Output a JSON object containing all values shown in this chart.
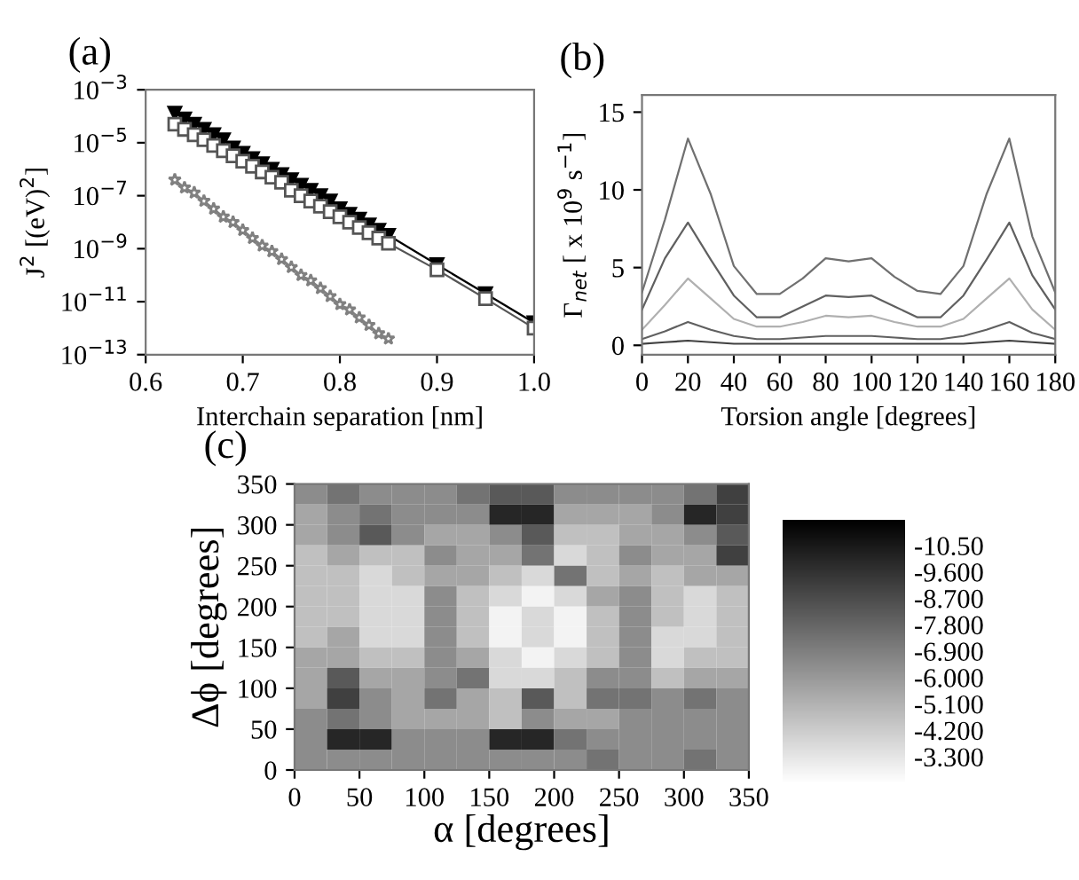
{
  "chart_data": [
    {
      "type": "line",
      "title": "(a)",
      "xlabel": "Interchain separation [nm]",
      "ylabel": "J$^{2}$ [(eV)$^{2}$]",
      "log": "y",
      "x": [
        0.63,
        0.64,
        0.65,
        0.66,
        0.67,
        0.68,
        0.69,
        0.7,
        0.71,
        0.72,
        0.73,
        0.74,
        0.75,
        0.76,
        0.77,
        0.78,
        0.79,
        0.8,
        0.81,
        0.82,
        0.83,
        0.84,
        0.85,
        0.9,
        0.95,
        1.0
      ],
      "xlim": [
        0.6,
        1.0
      ],
      "xticks": [
        0.6,
        0.7,
        0.8,
        0.9,
        {
          "value": 1.0,
          "label": "1.0"
        }
      ],
      "ylim": [
        1e-13,
        0.001
      ],
      "yticks": [
        {
          "value": 1e-13,
          "label": "10$^{−13}$"
        },
        {
          "value": 1e-11,
          "label": "10$^{−11}$"
        },
        {
          "value": 1e-09,
          "label": "10$^{−9}$"
        },
        {
          "value": 1e-07,
          "label": "10$^{−7}$"
        },
        {
          "value": 1e-05,
          "label": "10$^{−5}$"
        },
        {
          "value": 0.001,
          "label": "10$^{−3}$"
        }
      ],
      "grid": false,
      "series": [
        {
          "color": "#000000",
          "marker": "triangle",
          "values": [
            0.00013,
            7.9e-05,
            5e-05,
            3.2e-05,
            2e-05,
            1.3e-05,
            6.3e-06,
            4e-06,
            2.5e-06,
            1.6e-06,
            1e-06,
            6.3e-07,
            4e-07,
            2.5e-07,
            1.6e-07,
            1e-07,
            6.3e-08,
            3.2e-08,
            2e-08,
            1.3e-08,
            7.9e-09,
            5e-09,
            3.2e-09,
            2.5e-10,
            2e-11,
            1.6e-12
          ]
        },
        {
          "color": "#555555",
          "marker": "square",
          "values": [
            5e-05,
            3.2e-05,
            2e-05,
            1.3e-05,
            7.9e-06,
            5e-06,
            3.2e-06,
            2e-06,
            1.3e-06,
            7.9e-07,
            5e-07,
            3.2e-07,
            1.6e-07,
            1e-07,
            6.3e-08,
            4e-08,
            2.5e-08,
            1.6e-08,
            1e-08,
            6.3e-09,
            4e-09,
            2.5e-09,
            1.6e-09,
            1.6e-10,
            1.3e-11,
            1e-12
          ]
        },
        {
          "color": "#808080",
          "marker": "star",
          "values": [
            4e-07,
            2e-07,
            1.3e-07,
            6.3e-08,
            3.2e-08,
            1.6e-08,
            1e-08,
            5e-09,
            2.5e-09,
            1.3e-09,
            7.9e-10,
            4e-10,
            2e-10,
            1e-10,
            6.3e-11,
            3.2e-11,
            1.6e-11,
            7.9e-12,
            5e-12,
            2.5e-12,
            1.3e-12,
            6.3e-13,
            4e-13,
            null,
            null,
            null
          ]
        }
      ]
    },
    {
      "type": "line",
      "title": "(b)",
      "xlabel": "Torsion angle [degrees]",
      "ylabel": "Γ$_{net}$ [ x 10$^{9}$ s$^{−1}$]",
      "x": [
        0,
        10,
        20,
        30,
        40,
        50,
        60,
        70,
        80,
        90,
        100,
        110,
        120,
        130,
        140,
        150,
        160,
        170,
        180
      ],
      "xlim": [
        0,
        180
      ],
      "xticks": [
        0,
        20,
        40,
        60,
        80,
        100,
        120,
        140,
        160,
        180
      ],
      "ylim": [
        -0.6,
        16.1
      ],
      "yticks": [
        0,
        5,
        10,
        15
      ],
      "grid": false,
      "series": [
        {
          "color": "#707070",
          "values": [
            3.4,
            8.1,
            13.3,
            9.7,
            5.1,
            3.3,
            3.3,
            4.3,
            5.6,
            5.4,
            5.6,
            4.4,
            3.5,
            3.3,
            5.1,
            9.7,
            13.3,
            7.0,
            3.4
          ]
        },
        {
          "color": "#606060",
          "values": [
            2.3,
            5.6,
            7.9,
            5.5,
            3.2,
            1.8,
            1.8,
            2.5,
            3.2,
            3.1,
            3.2,
            2.5,
            1.8,
            1.8,
            3.2,
            5.5,
            7.9,
            4.5,
            2.3
          ]
        },
        {
          "color": "#b0b0b0",
          "values": [
            1.0,
            2.6,
            4.3,
            3.0,
            1.7,
            1.2,
            1.2,
            1.5,
            1.9,
            1.8,
            1.9,
            1.5,
            1.2,
            1.2,
            1.7,
            3.0,
            4.3,
            2.3,
            1.0
          ]
        },
        {
          "color": "#606060",
          "values": [
            0.4,
            0.9,
            1.5,
            1.0,
            0.6,
            0.4,
            0.4,
            0.5,
            0.6,
            0.6,
            0.6,
            0.5,
            0.4,
            0.4,
            0.6,
            1.0,
            1.5,
            0.8,
            0.4
          ]
        },
        {
          "color": "#404040",
          "values": [
            0.1,
            0.2,
            0.3,
            0.2,
            0.1,
            0.1,
            0.1,
            0.1,
            0.1,
            0.1,
            0.1,
            0.1,
            0.1,
            0.1,
            0.1,
            0.2,
            0.3,
            0.2,
            0.1
          ]
        }
      ]
    },
    {
      "type": "heatmap",
      "title": "(c)",
      "xlabel": "α [degrees]",
      "ylabel": "Δϕ [degrees]",
      "x": [
        12.5,
        37.5,
        62.5,
        87.5,
        112.5,
        137.5,
        162.5,
        187.5,
        212.5,
        237.5,
        262.5,
        287.5,
        312.5,
        337.5
      ],
      "y": [
        337.5,
        312.5,
        287.5,
        262.5,
        237.5,
        212.5,
        187.5,
        162.5,
        137.5,
        112.5,
        87.5,
        62.5,
        37.5,
        12.5
      ],
      "xlim": [
        0,
        350
      ],
      "xticks": [
        0,
        50,
        100,
        150,
        200,
        250,
        300,
        350
      ],
      "ylim": [
        0,
        350
      ],
      "yticks": [
        0,
        50,
        100,
        150,
        200,
        250,
        300,
        350
      ],
      "clim": [
        -11.4,
        -2.4
      ],
      "cticks": [
        {
          "value": -10.5,
          "label": "-10.50"
        },
        {
          "value": -9.6,
          "label": "-9.600"
        },
        {
          "value": -8.7,
          "label": "-8.700"
        },
        {
          "value": -7.8,
          "label": "-7.800"
        },
        {
          "value": -6.9,
          "label": "-6.900"
        },
        {
          "value": -6.0,
          "label": "-6.000"
        },
        {
          "value": -5.1,
          "label": "-5.100"
        },
        {
          "value": -4.2,
          "label": "-4.200"
        },
        {
          "value": -3.3,
          "label": "-3.300"
        }
      ],
      "cells": [
        [
          -6.45,
          -7.35,
          -6.45,
          -6.45,
          -6.45,
          -7.35,
          -8.25,
          -8.25,
          -6.45,
          -6.45,
          -6.45,
          -6.45,
          -7.35,
          -9.15
        ],
        [
          -5.55,
          -6.45,
          -7.35,
          -6.45,
          -6.45,
          -6.45,
          -10.05,
          -10.05,
          -5.55,
          -5.55,
          -5.55,
          -6.45,
          -10.05,
          -9.15
        ],
        [
          -5.55,
          -6.45,
          -8.25,
          -6.45,
          -5.55,
          -5.55,
          -6.45,
          -8.25,
          -4.65,
          -4.65,
          -5.55,
          -5.55,
          -6.45,
          -8.25
        ],
        [
          -4.65,
          -5.55,
          -4.65,
          -4.65,
          -6.45,
          -5.55,
          -5.55,
          -7.35,
          -3.75,
          -4.65,
          -6.45,
          -5.55,
          -5.55,
          -9.15
        ],
        [
          -4.65,
          -4.65,
          -3.75,
          -4.65,
          -5.55,
          -5.55,
          -4.65,
          -3.75,
          -7.35,
          -4.65,
          -5.55,
          -4.65,
          -5.55,
          -5.55
        ],
        [
          -4.65,
          -4.65,
          -3.75,
          -3.75,
          -6.45,
          -4.65,
          -3.75,
          -2.85,
          -3.75,
          -5.55,
          -6.45,
          -4.65,
          -3.75,
          -4.65
        ],
        [
          -4.65,
          -4.65,
          -3.75,
          -3.75,
          -6.45,
          -4.65,
          -2.85,
          -3.75,
          -2.85,
          -4.65,
          -6.45,
          -4.65,
          -3.75,
          -4.65
        ],
        [
          -4.65,
          -5.55,
          -3.75,
          -3.75,
          -6.45,
          -4.65,
          -2.85,
          -3.75,
          -2.85,
          -4.65,
          -6.45,
          -3.75,
          -3.75,
          -4.65
        ],
        [
          -5.55,
          -5.55,
          -4.65,
          -4.65,
          -6.45,
          -5.55,
          -3.75,
          -2.85,
          -3.75,
          -4.65,
          -6.45,
          -3.75,
          -4.65,
          -4.65
        ],
        [
          -5.55,
          -8.25,
          -5.55,
          -5.55,
          -6.45,
          -7.35,
          -3.75,
          -3.75,
          -4.65,
          -6.45,
          -6.45,
          -4.65,
          -5.55,
          -5.55
        ],
        [
          -5.55,
          -9.15,
          -6.45,
          -5.55,
          -7.35,
          -5.55,
          -4.65,
          -8.25,
          -4.65,
          -7.35,
          -7.35,
          -6.45,
          -7.35,
          -6.45
        ],
        [
          -6.45,
          -7.35,
          -6.45,
          -5.55,
          -5.55,
          -5.55,
          -4.65,
          -6.45,
          -5.55,
          -5.55,
          -6.45,
          -6.45,
          -6.45,
          -6.45
        ],
        [
          -6.45,
          -10.05,
          -10.05,
          -6.45,
          -6.45,
          -6.45,
          -10.05,
          -10.05,
          -7.35,
          -6.45,
          -6.45,
          -6.45,
          -6.45,
          -6.45
        ],
        [
          -6.45,
          -6.45,
          -6.45,
          -6.45,
          -6.45,
          -6.45,
          -6.45,
          -6.45,
          -6.45,
          -7.35,
          -6.45,
          -6.45,
          -7.35,
          -6.45
        ]
      ]
    }
  ]
}
